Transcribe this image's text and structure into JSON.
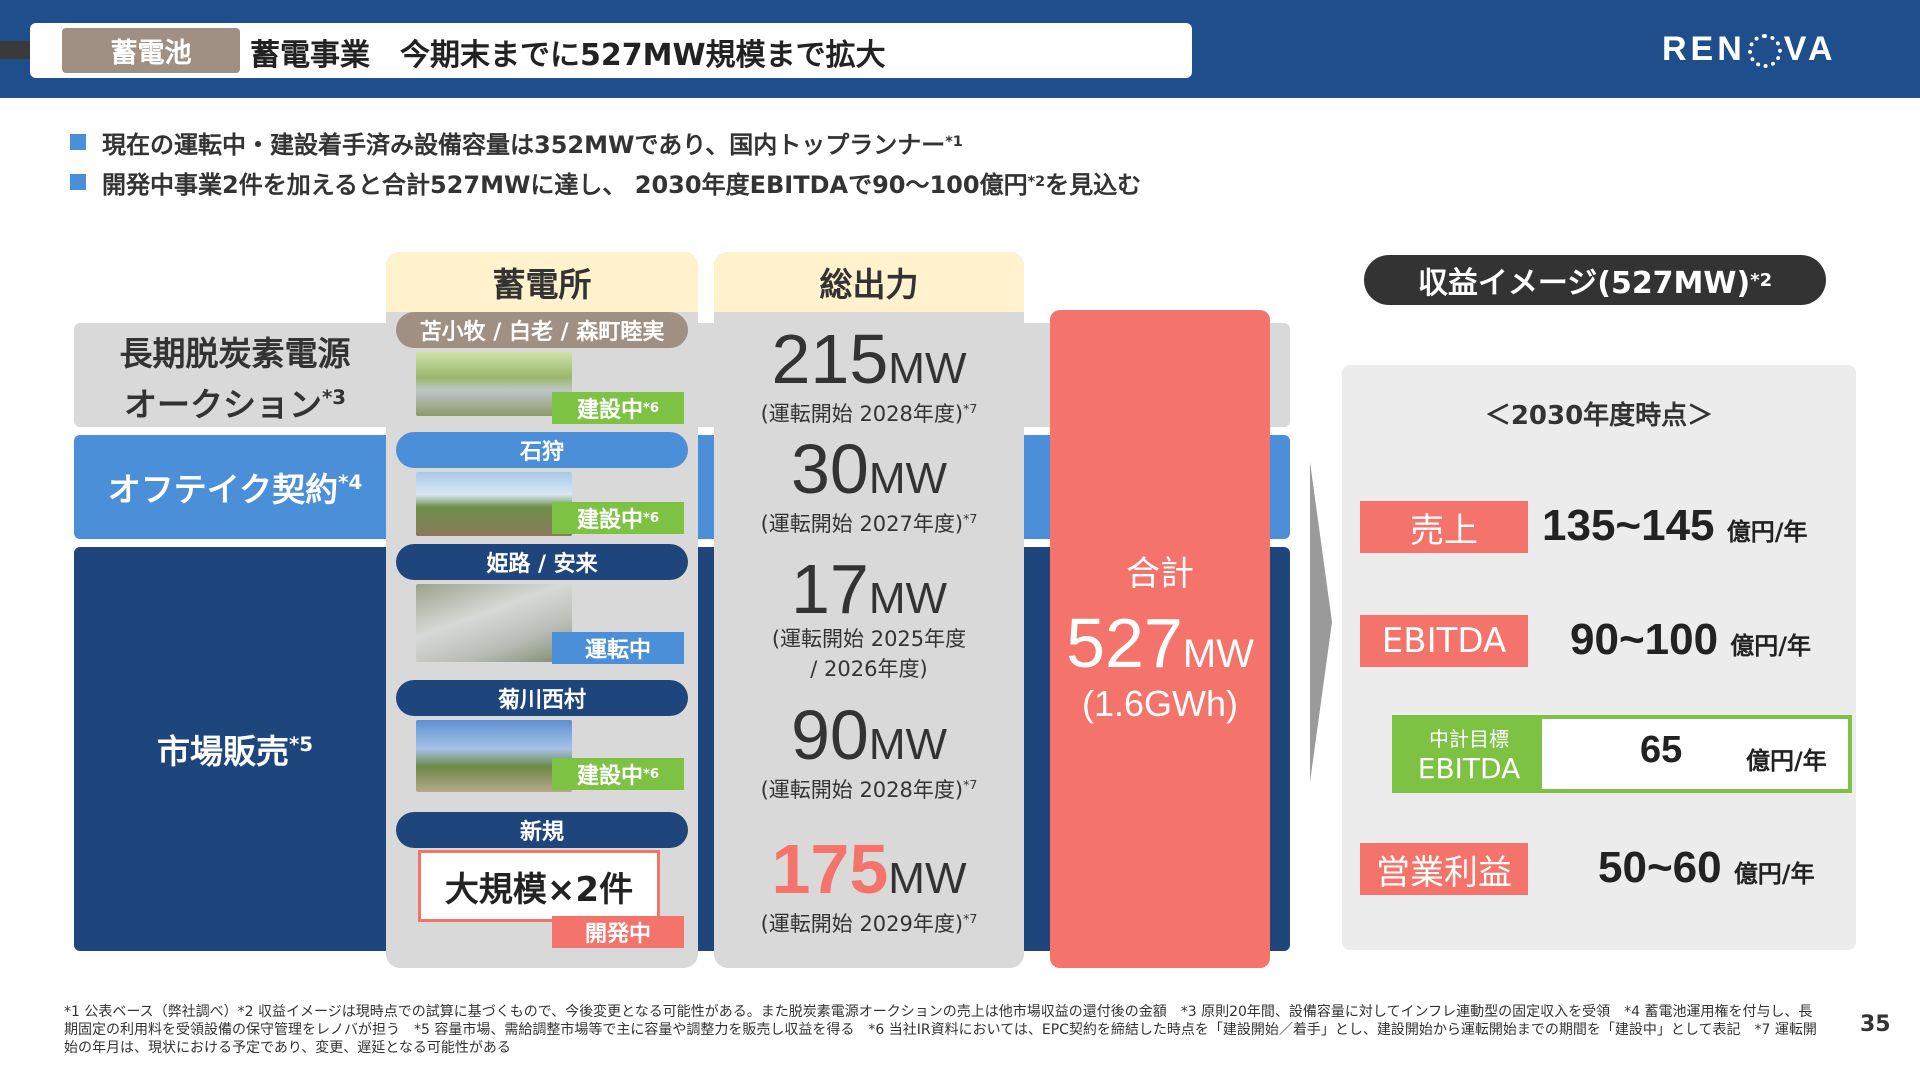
{
  "header": {
    "tag": "蓄電池",
    "title": "蓄電事業　今期末までに527MW規模まで拡大",
    "logo": "REN◎VA"
  },
  "bullets": [
    {
      "text": "現在の運転中・建設着手済み設備容量は352MWであり、国内トップランナー",
      "sup": "*1"
    },
    {
      "text": "開発中事業2件を加えると合計527MWに達し、 2030年度EBITDAで90～100億円",
      "sup": "*2",
      "tail": "を見込む"
    }
  ],
  "rows": {
    "auction": {
      "line1": "長期脱炭素電源",
      "line2": "オークション",
      "sup": "*3"
    },
    "offtake": {
      "label": "オフテイク契約",
      "sup": "*4"
    },
    "market": {
      "label": "市場販売",
      "sup": "*5"
    }
  },
  "columns": {
    "sites_header": "蓄電所",
    "output_header": "総出力"
  },
  "sites": [
    {
      "name": "苫小牧 / 白老 / 森町睦実",
      "status": "建設中",
      "status_sup": "*6"
    },
    {
      "name": "石狩",
      "status": "建設中",
      "status_sup": "*6"
    },
    {
      "name": "姫路 / 安来",
      "status": "運転中",
      "status_sup": ""
    },
    {
      "name": "菊川西村",
      "status": "建設中",
      "status_sup": "*6"
    },
    {
      "name": "新規",
      "box": "大規模×2件",
      "status": "開発中",
      "status_sup": ""
    }
  ],
  "outputs": [
    {
      "num": "215",
      "unit": "MW",
      "note": "(運転開始 2028年度)",
      "sup": "*7"
    },
    {
      "num": "30",
      "unit": "MW",
      "note": "(運転開始 2027年度)",
      "sup": "*7"
    },
    {
      "num": "17",
      "unit": "MW",
      "note": "(運転開始 2025年度",
      "note2": "/ 2026年度)",
      "sup": ""
    },
    {
      "num": "90",
      "unit": "MW",
      "note": "(運転開始 2028年度)",
      "sup": "*7"
    },
    {
      "num": "175",
      "unit": "MW",
      "note": "(運転開始 2029年度)",
      "sup": "*7"
    }
  ],
  "total": {
    "label": "合計",
    "num": "527",
    "unit": "MW",
    "sub": "(1.6GWh)"
  },
  "profit": {
    "title": "収益イメージ(527MW)",
    "title_sup": "*2",
    "period": "＜2030年度時点＞",
    "items": [
      {
        "label": "売上",
        "value": "135~145",
        "unit": "億円/年"
      },
      {
        "label": "EBITDA",
        "value": "90~100",
        "unit": "億円/年"
      },
      {
        "label_top": "中計目標",
        "label": "EBITDA",
        "value": "65",
        "unit": "億円/年"
      },
      {
        "label": "営業利益",
        "value": "50~60",
        "unit": "億円/年"
      }
    ]
  },
  "footnote": "*1 公表ベース（弊社調べ）*2 収益イメージは現時点での試算に基づくもので、今後変更となる可能性がある。また脱炭素電源オークションの売上は他市場収益の還付後の金額　*3 原則20年間、設備容量に対してインフレ連動型の固定収入を受領　*4 蓄電池運用権を付与し、長期固定の利用料を受領設備の保守管理をレノバが担う　*5 容量市場、需給調整市場等で主に容量や調整力を販売し収益を得る　*6 当社IR資料においては、EPC契約を締結した時点を「建設開始／着手」とし、建設開始から運転開始までの期間を「建設中」として表記　*7 運転開始の年月は、現状における予定であり、変更、遅延となる可能性がある",
  "page_number": "35",
  "colors": {
    "navy": "#1e467c",
    "blue": "#4a8fd8",
    "coral": "#f4736a",
    "green": "#7dc243",
    "header": "#1f4e8c"
  }
}
